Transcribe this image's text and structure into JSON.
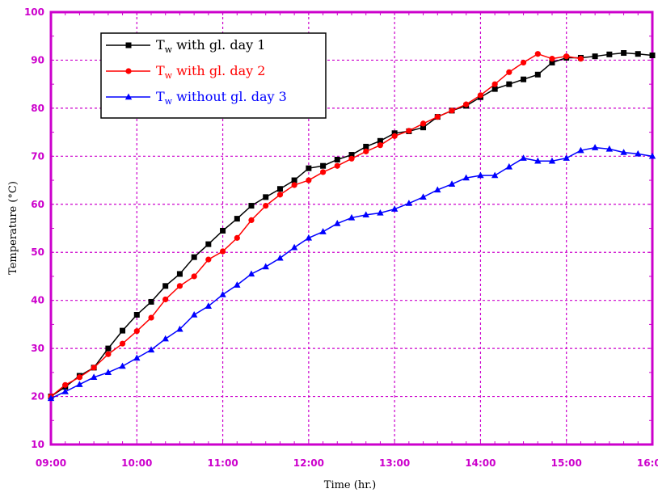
{
  "chart_data": {
    "type": "line",
    "xlabel": "Time (hr.)",
    "ylabel": "Temperature (°C)",
    "xlim": [
      9.0,
      16.0
    ],
    "ylim": [
      10,
      100
    ],
    "x_ticks": [
      9,
      10,
      11,
      12,
      13,
      14,
      15,
      16
    ],
    "x_tick_labels": [
      "09:00",
      "10:00",
      "11:00",
      "12:00",
      "13:00",
      "14:00",
      "15:00",
      "16:00"
    ],
    "y_ticks": [
      10,
      20,
      30,
      40,
      50,
      60,
      70,
      80,
      90,
      100
    ],
    "y_tick_labels": [
      "10",
      "20",
      "30",
      "40",
      "50",
      "60",
      "70",
      "80",
      "90",
      "100"
    ],
    "grid": true,
    "legend_position": "top-left",
    "x": [
      9.0,
      9.167,
      9.333,
      9.5,
      9.667,
      9.833,
      10.0,
      10.167,
      10.333,
      10.5,
      10.667,
      10.833,
      11.0,
      11.167,
      11.333,
      11.5,
      11.667,
      11.833,
      12.0,
      12.167,
      12.333,
      12.5,
      12.667,
      12.833,
      13.0,
      13.167,
      13.333,
      13.5,
      13.667,
      13.833,
      14.0,
      14.167,
      14.333,
      14.5,
      14.667,
      14.833,
      15.0,
      15.167,
      15.333,
      15.5,
      15.667,
      15.833,
      16.0
    ],
    "series": [
      {
        "name": "T",
        "name_sub": "w",
        "name_rest": " with gl. day 1",
        "color": "#000000",
        "marker": "square",
        "values": [
          20,
          22,
          24.3,
          26,
          30,
          33.7,
          37,
          39.7,
          43,
          45.5,
          49,
          51.7,
          54.5,
          57,
          59.7,
          61.5,
          63.2,
          65,
          67.5,
          68,
          69.3,
          70.3,
          72,
          73.2,
          74.8,
          75.2,
          76,
          78.2,
          79.5,
          80.5,
          82.3,
          84,
          85,
          86,
          87,
          89.5,
          90.5,
          90.5,
          90.8,
          91.2,
          91.5,
          91.3,
          91
        ]
      },
      {
        "name": "T",
        "name_sub": "w",
        "name_rest": " with gl. day 2",
        "color": "#ff0000",
        "marker": "circle",
        "values": [
          20,
          22.4,
          24,
          26,
          28.8,
          31,
          33.6,
          36.4,
          40.2,
          43,
          45,
          48.5,
          50.2,
          53,
          56.7,
          59.7,
          62,
          64,
          65,
          66.7,
          68,
          69.5,
          71,
          72.3,
          74.2,
          75.3,
          76.8,
          78.2,
          79.5,
          80.8,
          82.7,
          85,
          87.5,
          89.5,
          91.3,
          90.3,
          90.8,
          90.3,
          null,
          null,
          null,
          null,
          null
        ]
      },
      {
        "name": "T",
        "name_sub": "w",
        "name_rest": " without gl. day 3",
        "color": "#0000ff",
        "marker": "triangle",
        "values": [
          19.6,
          21,
          22.5,
          24,
          25,
          26.3,
          28,
          29.7,
          32,
          34,
          37,
          38.8,
          41.2,
          43.2,
          45.5,
          47,
          48.8,
          51,
          53,
          54.3,
          56,
          57.2,
          57.8,
          58.2,
          59,
          60.2,
          61.5,
          63,
          64.2,
          65.5,
          66,
          66,
          67.8,
          69.6,
          69,
          69,
          69.6,
          71.2,
          71.8,
          71.5,
          70.8,
          70.5,
          70
        ]
      }
    ]
  }
}
